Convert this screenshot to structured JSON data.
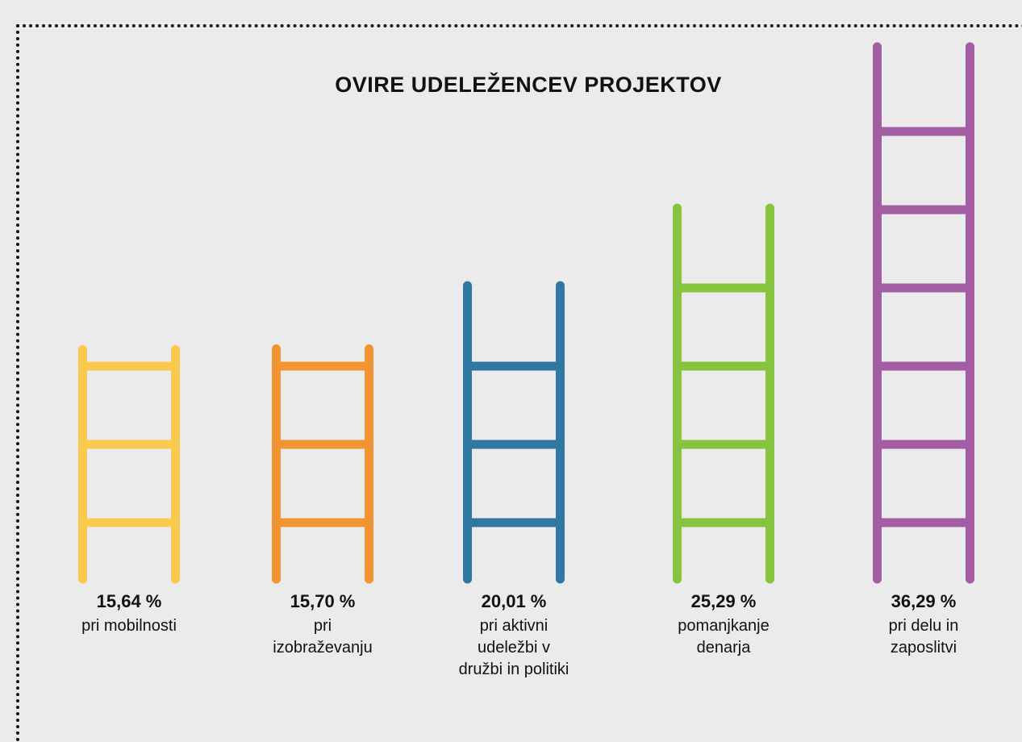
{
  "chart_data": {
    "type": "ladder",
    "title": "OVIRE UDELEŽENCEV PROJEKTOV",
    "categories": [
      "pri mobilnosti",
      "pri izobraževanju",
      "pri aktivni udeležbi v družbi in politiki",
      "pomanjkanje denarja",
      "pri delu in zaposlitvi"
    ],
    "values": [
      15.64,
      15.7,
      20.01,
      25.29,
      36.29
    ],
    "value_labels": [
      "15,64 %",
      "15,70 %",
      "20,01 %",
      "25,29 %",
      "36,29 %"
    ],
    "colors": [
      "#fbc850",
      "#f39432",
      "#2f78a2",
      "#86c440",
      "#a25da3"
    ]
  }
}
